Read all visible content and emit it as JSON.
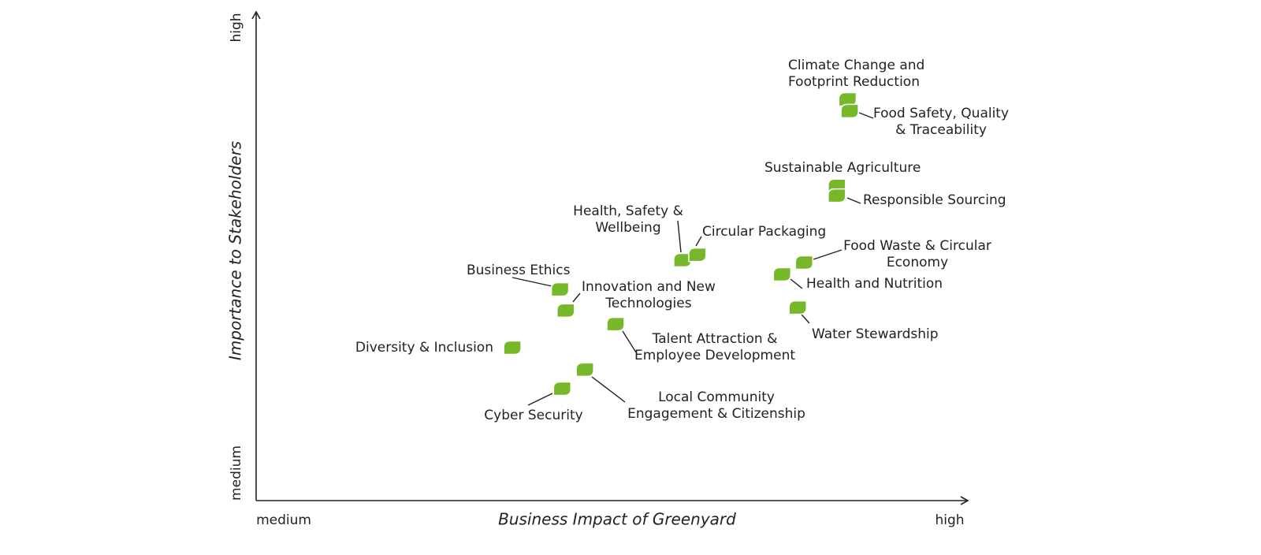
{
  "chart_data": {
    "type": "scatter",
    "xlabel": "Business Impact of Greenyard",
    "ylabel": "Importance to Stakeholders",
    "xlim": [
      0,
      10
    ],
    "ylim": [
      0,
      10
    ],
    "xticks": [
      {
        "value": 0,
        "label": "medium"
      },
      {
        "value": 10,
        "label": "high"
      }
    ],
    "yticks": [
      {
        "value": 0,
        "label": "medium"
      },
      {
        "value": 10,
        "label": "high"
      }
    ],
    "grid": false,
    "series": [
      {
        "color": "#76b82a",
        "labels": [
          [
            "Climate Change and",
            "Footprint Reduction"
          ],
          [
            "Food Safety, Quality",
            "& Traceability"
          ],
          [
            "Sustainable Agriculture"
          ],
          [
            "Responsible Sourcing"
          ],
          [
            "Health, Safety &",
            "Wellbeing"
          ],
          [
            "Circular Packaging"
          ],
          [
            "Food Waste & Circular",
            "Economy"
          ],
          [
            "Health and Nutrition"
          ],
          [
            "Water Stewardship"
          ],
          [
            "Business Ethics"
          ],
          [
            "Innovation and New",
            "Technologies"
          ],
          [
            "Talent Attraction &",
            "Employee Development"
          ],
          [
            "Diversity & Inclusion"
          ],
          [
            "Local Community",
            "Engagement & Citizenship"
          ],
          [
            "Cyber Security"
          ]
        ],
        "x": [
          8.31,
          8.34,
          8.16,
          8.16,
          5.99,
          6.2,
          7.7,
          7.39,
          7.61,
          4.27,
          4.35,
          5.05,
          3.6,
          4.62,
          4.3
        ],
        "values": [
          8.21,
          7.97,
          6.44,
          6.24,
          4.92,
          5.03,
          4.87,
          4.63,
          3.95,
          4.32,
          3.89,
          3.61,
          3.13,
          2.68,
          2.29
        ]
      }
    ]
  }
}
